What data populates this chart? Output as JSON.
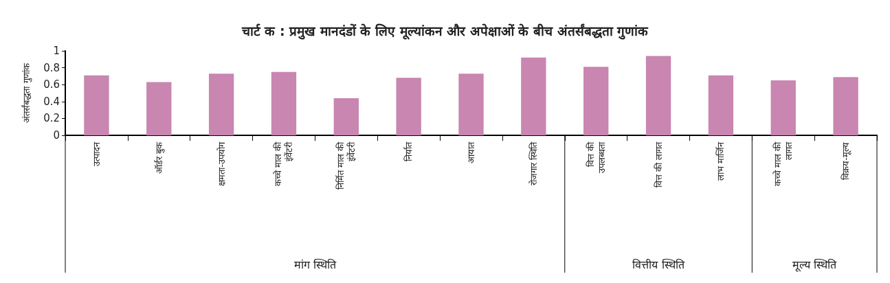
{
  "chart_data": {
    "type": "bar",
    "title": "चार्ट क : प्रमुख मानदंडों के लिए मूल्यांकन और अपेक्षाओं के बीच अंतर्संबद्धता गुणांक",
    "ylabel": "अंतर्संबद्धता गुणांक",
    "categories": [
      "उत्पादन",
      "ऑर्डर बुक",
      "क्षमता-उपयोग",
      "कच्चे माल की\nइंवेंटरी",
      "निर्मित माल की\nइंवेंटरी",
      "निर्यात",
      "आयात",
      "रोजगार स्थिति",
      "वित्त की\nउपलब्धता",
      "वित्त की लागत",
      "लाभ मार्जिन",
      "कच्चे माल की\nलागत",
      "विक्रय-मूल्य"
    ],
    "values": [
      0.71,
      0.63,
      0.73,
      0.75,
      0.44,
      0.68,
      0.73,
      0.92,
      0.81,
      0.94,
      0.71,
      0.65,
      0.69
    ],
    "color": "#c886b0",
    "ylim": [
      0,
      1
    ],
    "yticks": [
      0,
      0.2,
      0.4,
      0.6,
      0.8,
      1
    ],
    "grid": false,
    "annotations": [
      "मांग स्थिति",
      "वित्तीय स्थिति",
      "मूल्य स्थिति"
    ]
  }
}
